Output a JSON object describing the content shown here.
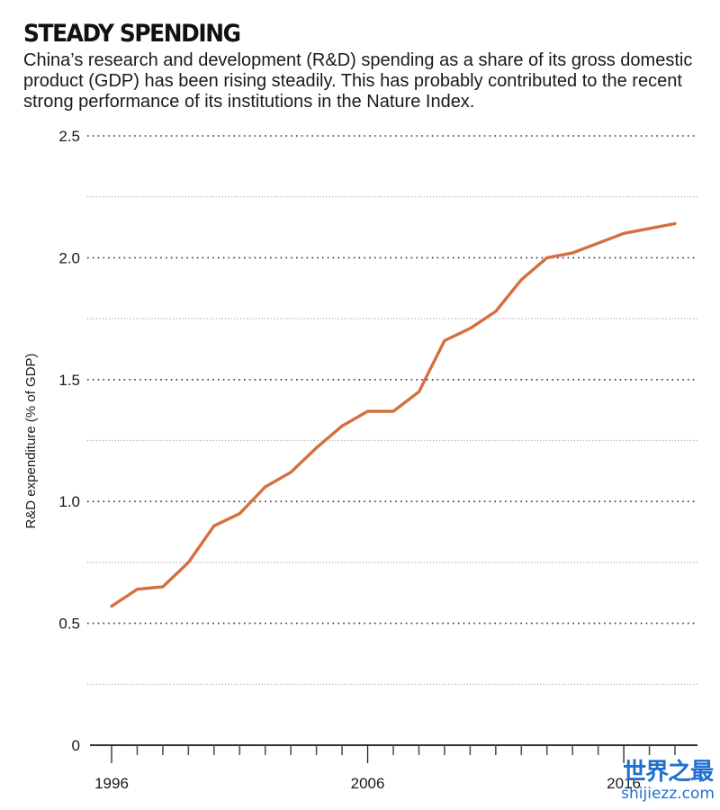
{
  "header": {
    "title": "STEADY SPENDING",
    "subtitle": "China’s research and development (R&D) spending as a share of its gross domestic product (GDP) has been rising steadily. This has probably contributed to the recent strong performance of its institutions in the Nature Index."
  },
  "chart_data": {
    "type": "line",
    "title": "STEADY SPENDING",
    "xlabel": "",
    "ylabel": "R&D expenditure (% of GDP)",
    "x": [
      1996,
      1997,
      1998,
      1999,
      2000,
      2001,
      2002,
      2003,
      2004,
      2005,
      2006,
      2007,
      2008,
      2009,
      2010,
      2011,
      2012,
      2013,
      2014,
      2015,
      2016,
      2017,
      2018
    ],
    "series": [
      {
        "name": "China R&D expenditure (% of GDP)",
        "color": "#d4703f",
        "values": [
          0.57,
          0.64,
          0.65,
          0.75,
          0.9,
          0.95,
          1.06,
          1.12,
          1.22,
          1.31,
          1.37,
          1.37,
          1.45,
          1.66,
          1.71,
          1.78,
          1.91,
          2.0,
          2.02,
          2.06,
          2.1,
          2.12,
          2.14
        ]
      }
    ],
    "xlim": [
      1996,
      2018
    ],
    "ylim": [
      0,
      2.5
    ],
    "yticks": [
      0,
      0.5,
      1.0,
      1.5,
      2.0,
      2.5
    ],
    "ytick_labels": [
      "0",
      "0.5",
      "1.0",
      "1.5",
      "2.0",
      "2.5"
    ],
    "minor_gridlines": [
      0.25,
      0.75,
      1.25,
      1.75,
      2.25
    ],
    "xticks_labeled": [
      1996,
      2006,
      2016
    ],
    "xtick_labels": [
      "1996",
      "2006",
      "2016"
    ],
    "grid": true,
    "grid_style": "dotted",
    "legend": "none"
  },
  "watermark": {
    "text_cn": "世界之最",
    "url": "shijiezz.com"
  }
}
